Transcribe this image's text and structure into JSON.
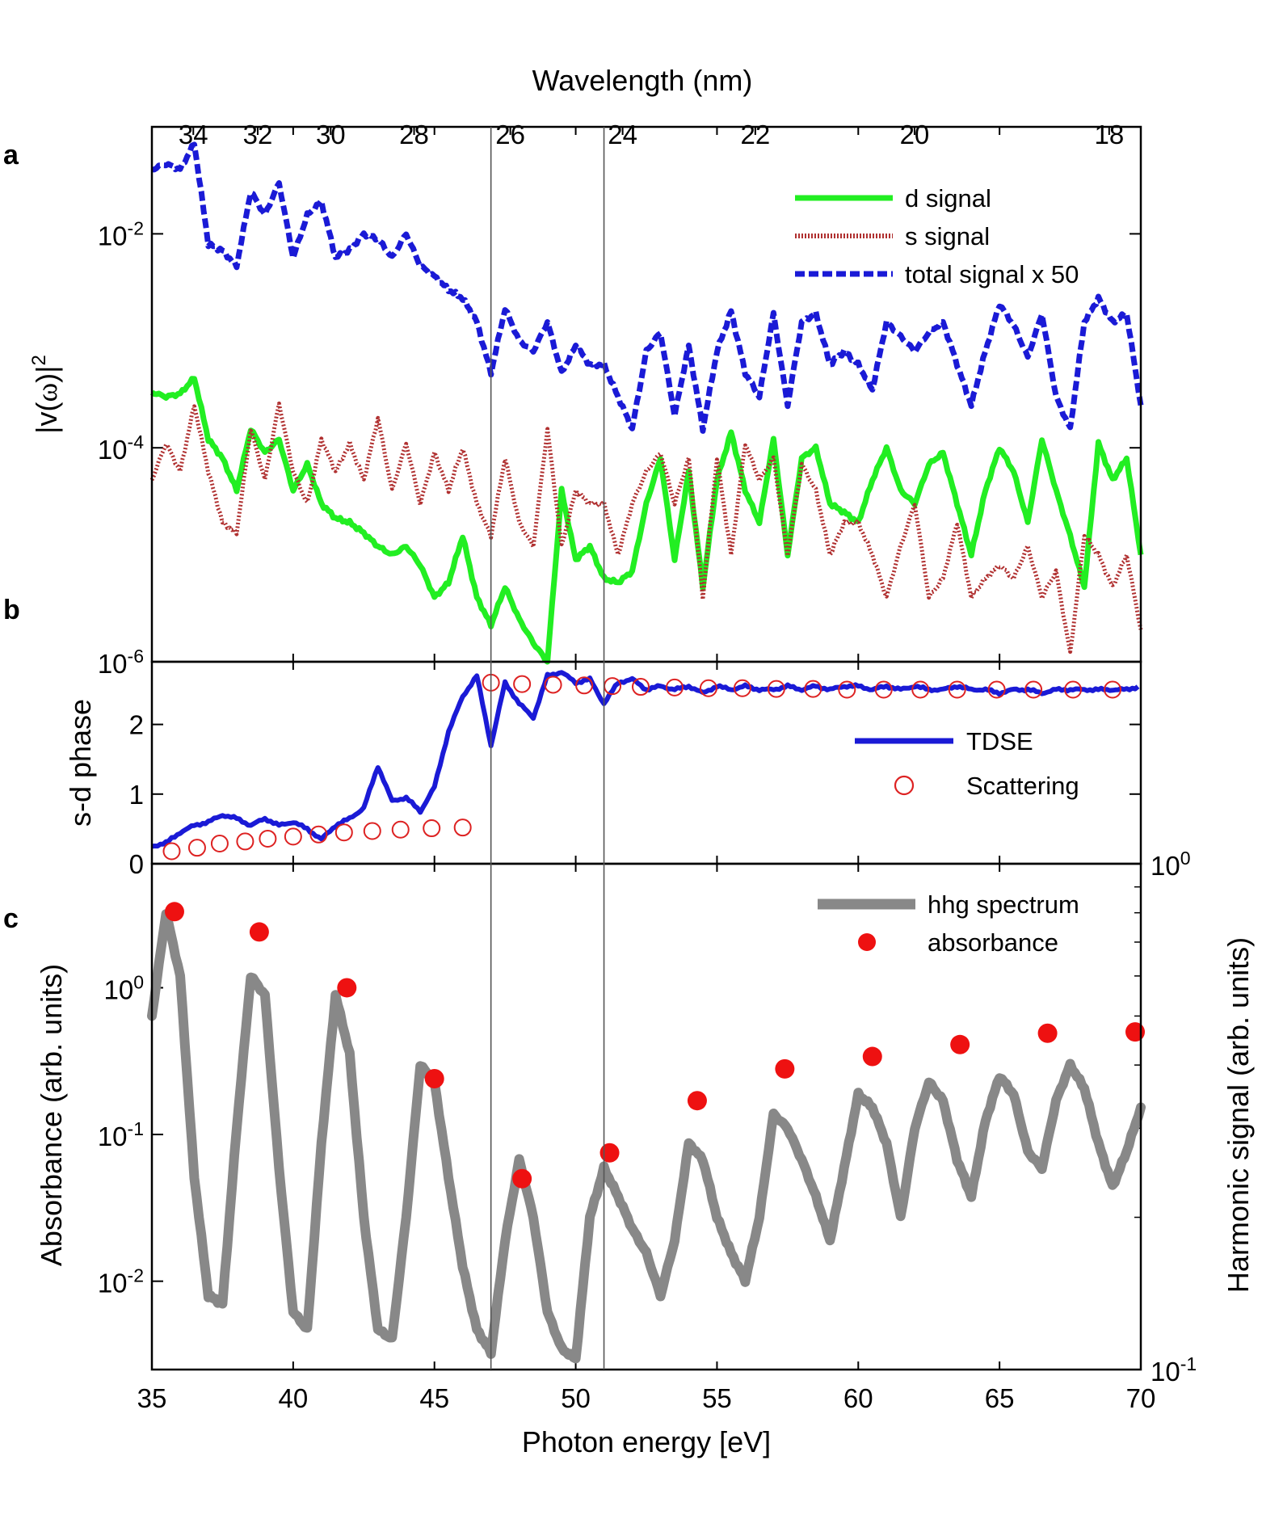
{
  "figure": {
    "panel_labels": [
      "a",
      "b",
      "c"
    ],
    "top_axis": {
      "label": "Wavelength (nm)",
      "ticks": [
        34,
        32,
        30,
        28,
        26,
        24,
        22,
        20,
        18
      ],
      "tick_labels": [
        "34",
        "32",
        "30",
        "28",
        "26",
        "24",
        "22",
        "20",
        "18"
      ]
    },
    "bottom_axis": {
      "label": "Photon energy [eV]",
      "range": [
        35,
        70
      ],
      "ticks": [
        35,
        40,
        45,
        50,
        55,
        60,
        65,
        70
      ],
      "tick_labels": [
        "35",
        "40",
        "45",
        "50",
        "55",
        "60",
        "65",
        "70"
      ]
    },
    "reference_lines_eV": [
      47.0,
      51.0
    ]
  },
  "chart_data": [
    {
      "panel": "a",
      "type": "line",
      "ylabel_base": "|v(",
      "ylabel_omega": "ω",
      "ylabel_end": ")|",
      "ylabel_sup": "2",
      "yscale": "log",
      "ylim": [
        1e-06,
        0.1
      ],
      "yticks": [
        1e-06,
        0.0001,
        0.01
      ],
      "ytick_bases": [
        "10",
        "10",
        "10"
      ],
      "ytick_exps": [
        "-6",
        "-4",
        "-2"
      ],
      "series": [
        {
          "name": "d signal",
          "color": "#22ee22",
          "style": "solid",
          "x": [
            35,
            35.5,
            36,
            36.5,
            37,
            37.5,
            38,
            38.5,
            39,
            39.5,
            40,
            40.5,
            41,
            41.5,
            42,
            42.5,
            43,
            43.5,
            44,
            44.5,
            45,
            45.5,
            46,
            46.5,
            47,
            47.5,
            48,
            48.5,
            49,
            49.5,
            50,
            50.5,
            51,
            51.5,
            52,
            52.5,
            53,
            53.5,
            54,
            54.5,
            55,
            55.5,
            56,
            56.5,
            57,
            57.5,
            58,
            58.5,
            59,
            59.5,
            60,
            60.5,
            61,
            61.5,
            62,
            62.5,
            63,
            63.5,
            64,
            64.5,
            65,
            65.5,
            66,
            66.5,
            67,
            67.5,
            68,
            68.5,
            69,
            69.5,
            70
          ],
          "y": [
            0.00033,
            0.0003,
            0.00032,
            0.00045,
            0.00012,
            8e-05,
            4e-05,
            0.00015,
            9e-05,
            0.00012,
            4e-05,
            7e-05,
            3e-05,
            2.2e-05,
            2e-05,
            1.6e-05,
            1.2e-05,
            1e-05,
            1.2e-05,
            8e-06,
            4e-06,
            5.5e-06,
            1.5e-05,
            4e-06,
            2.2e-06,
            5e-06,
            2.5e-06,
            1.5e-06,
            1e-06,
            4e-05,
            9e-06,
            1.2e-05,
            6e-06,
            5.5e-06,
            7e-06,
            3e-05,
            8e-05,
            9e-06,
            6e-05,
            5e-06,
            5e-05,
            0.00014,
            4e-05,
            2e-05,
            0.00012,
            1e-05,
            8e-05,
            0.0001,
            3e-05,
            2.5e-05,
            2e-05,
            5e-05,
            0.0001,
            4e-05,
            3e-05,
            7e-05,
            9e-05,
            3e-05,
            1e-05,
            4e-05,
            0.0001,
            6e-05,
            2e-05,
            0.00012,
            4e-05,
            1.5e-05,
            5e-06,
            0.00011,
            5e-05,
            8e-05,
            1e-05
          ]
        },
        {
          "name": "s signal",
          "color": "#b03030",
          "style": "dotted",
          "x": [
            35,
            35.5,
            36,
            36.5,
            37,
            37.5,
            38,
            38.5,
            39,
            39.5,
            40,
            40.5,
            41,
            41.5,
            42,
            42.5,
            43,
            43.5,
            44,
            44.5,
            45,
            45.5,
            46,
            46.5,
            47,
            47.5,
            48,
            48.5,
            49,
            49.5,
            50,
            50.5,
            51,
            51.5,
            52,
            52.5,
            53,
            53.5,
            54,
            54.5,
            55,
            55.5,
            56,
            56.5,
            57,
            57.5,
            58,
            58.5,
            59,
            59.5,
            60,
            60.5,
            61,
            61.5,
            62,
            62.5,
            63,
            63.5,
            64,
            64.5,
            65,
            65.5,
            66,
            66.5,
            67,
            67.5,
            68,
            68.5,
            69,
            69.5,
            70
          ],
          "y": [
            5e-05,
            0.00011,
            6e-05,
            0.00025,
            6e-05,
            2e-05,
            1.6e-05,
            0.00015,
            5e-05,
            0.00026,
            6e-05,
            3e-05,
            0.00012,
            6e-05,
            0.00011,
            5e-05,
            0.00019,
            4e-05,
            0.00011,
            3e-05,
            9e-05,
            4e-05,
            0.0001,
            3e-05,
            1.5e-05,
            8e-05,
            2e-05,
            1.2e-05,
            0.00015,
            1.2e-05,
            4e-05,
            3e-05,
            3e-05,
            1e-05,
            3e-05,
            6e-05,
            9e-05,
            3e-05,
            8e-05,
            4e-06,
            8e-05,
            1e-05,
            0.00011,
            5e-05,
            8e-05,
            1e-05,
            7e-05,
            4e-05,
            1e-05,
            2e-05,
            2e-05,
            1e-05,
            4e-06,
            1.2e-05,
            3e-05,
            4e-06,
            6e-06,
            2e-05,
            4e-06,
            6e-06,
            8e-06,
            6e-06,
            1.2e-05,
            4e-06,
            7e-06,
            1.2e-06,
            1.5e-05,
            1e-05,
            5e-06,
            1e-05,
            2e-06
          ]
        },
        {
          "name": "total signal x 50",
          "color": "#1a1ad6",
          "style": "dashed",
          "x": [
            35,
            35.5,
            36,
            36.5,
            37,
            37.5,
            38,
            38.5,
            39,
            39.5,
            40,
            40.5,
            41,
            41.5,
            42,
            42.5,
            43,
            43.5,
            44,
            44.5,
            45,
            45.5,
            46,
            46.5,
            47,
            47.5,
            48,
            48.5,
            49,
            49.5,
            50,
            50.5,
            51,
            51.5,
            52,
            52.5,
            53,
            53.5,
            54,
            54.5,
            55,
            55.5,
            56,
            56.5,
            57,
            57.5,
            58,
            58.5,
            59,
            59.5,
            60,
            60.5,
            61,
            61.5,
            62,
            62.5,
            63,
            63.5,
            64,
            64.5,
            65,
            65.5,
            66,
            66.5,
            67,
            67.5,
            68,
            68.5,
            69,
            69.5,
            70
          ],
          "y": [
            0.04,
            0.045,
            0.04,
            0.07,
            0.008,
            0.007,
            0.005,
            0.025,
            0.015,
            0.03,
            0.006,
            0.015,
            0.02,
            0.006,
            0.007,
            0.01,
            0.009,
            0.006,
            0.01,
            0.005,
            0.004,
            0.003,
            0.0025,
            0.0015,
            0.0005,
            0.002,
            0.001,
            0.0008,
            0.0015,
            0.0005,
            0.0009,
            0.0006,
            0.0006,
            0.0003,
            0.00015,
            0.0008,
            0.0012,
            0.0002,
            0.0009,
            0.00015,
            0.0008,
            0.0019,
            0.0005,
            0.0003,
            0.0018,
            0.00025,
            0.0015,
            0.0018,
            0.0006,
            0.0008,
            0.0006,
            0.00035,
            0.0015,
            0.0011,
            0.0008,
            0.0012,
            0.0015,
            0.0006,
            0.00025,
            0.0008,
            0.0022,
            0.0014,
            0.0007,
            0.0018,
            0.0003,
            0.00015,
            0.0015,
            0.0025,
            0.0015,
            0.0018,
            0.00025
          ]
        }
      ]
    },
    {
      "panel": "b",
      "type": "line",
      "ylabel": "s-d phase",
      "ylim": [
        0,
        2.9
      ],
      "yticks": [
        0,
        1,
        2
      ],
      "ytick_labels": [
        "0",
        "1",
        "2"
      ],
      "series": [
        {
          "name": "TDSE",
          "color": "#1a1ad6",
          "style": "solid",
          "x": [
            35,
            35.5,
            36,
            36.5,
            37,
            37.5,
            38,
            38.5,
            39,
            39.5,
            40,
            40.5,
            41,
            41.5,
            42,
            42.5,
            43,
            43.5,
            44,
            44.5,
            45,
            45.5,
            46,
            46.5,
            47,
            47.5,
            48,
            48.5,
            49,
            49.5,
            50,
            50.5,
            51,
            51.5,
            52,
            52.5,
            53,
            53.5,
            54,
            54.5,
            55,
            55.5,
            56,
            56.5,
            57,
            57.5,
            58,
            58.5,
            59,
            59.5,
            60,
            60.5,
            61,
            61.5,
            62,
            62.5,
            63,
            63.5,
            64,
            64.5,
            65,
            65.5,
            66,
            66.5,
            67,
            67.5,
            68,
            68.5,
            69,
            69.5,
            70
          ],
          "y": [
            0.25,
            0.3,
            0.45,
            0.55,
            0.6,
            0.7,
            0.65,
            0.55,
            0.65,
            0.55,
            0.6,
            0.5,
            0.35,
            0.55,
            0.65,
            0.8,
            1.4,
            0.9,
            0.95,
            0.75,
            1.1,
            1.9,
            2.4,
            2.7,
            1.7,
            2.6,
            2.3,
            2.1,
            2.7,
            2.75,
            2.6,
            2.65,
            2.3,
            2.6,
            2.65,
            2.5,
            2.55,
            2.5,
            2.55,
            2.45,
            2.55,
            2.5,
            2.55,
            2.5,
            2.5,
            2.55,
            2.5,
            2.55,
            2.5,
            2.55,
            2.55,
            2.5,
            2.55,
            2.5,
            2.55,
            2.5,
            2.5,
            2.55,
            2.5,
            2.5,
            2.45,
            2.5,
            2.5,
            2.45,
            2.5,
            2.5,
            2.5,
            2.5,
            2.5,
            2.5,
            2.55
          ]
        },
        {
          "name": "Scattering",
          "color": "#dd2222",
          "style": "open-circle",
          "x": [
            35.7,
            36.6,
            37.4,
            38.3,
            39.1,
            40.0,
            40.9,
            41.8,
            42.8,
            43.8,
            44.9,
            46.0,
            47.0,
            48.1,
            49.2,
            50.3,
            51.3,
            52.3,
            53.5,
            54.7,
            55.9,
            57.1,
            58.4,
            59.6,
            60.9,
            62.2,
            63.5,
            64.9,
            66.2,
            67.6,
            69.0
          ],
          "y": [
            0.18,
            0.23,
            0.29,
            0.32,
            0.36,
            0.39,
            0.42,
            0.45,
            0.47,
            0.49,
            0.51,
            0.52,
            2.6,
            2.58,
            2.57,
            2.56,
            2.55,
            2.54,
            2.53,
            2.52,
            2.52,
            2.51,
            2.51,
            2.5,
            2.5,
            2.5,
            2.5,
            2.5,
            2.5,
            2.5,
            2.5
          ]
        }
      ]
    },
    {
      "panel": "c",
      "type": "line",
      "ylabel_left": "Absorbance (arb. units)",
      "ylabel_right": "Harmonic signal (arb. units)",
      "yscale": "log",
      "ylim_left": [
        0.0025,
        7
      ],
      "yticks_left": [
        0.01,
        0.1,
        1
      ],
      "ytick_left_bases": [
        "10",
        "10",
        "10"
      ],
      "ytick_left_exps": [
        "-2",
        "-1",
        "0"
      ],
      "ylim_right": [
        0.1,
        1
      ],
      "yticks_right": [
        0.1,
        1
      ],
      "ytick_right_bases": [
        "10",
        "10"
      ],
      "ytick_right_exps": [
        "-1",
        "0"
      ],
      "series": [
        {
          "name": "hhg spectrum",
          "color": "#888888",
          "style": "solid",
          "axis": "right",
          "x": [
            35,
            35.5,
            36,
            36.5,
            37,
            37.5,
            38,
            38.5,
            39,
            39.5,
            40,
            40.5,
            41,
            41.5,
            42,
            42.5,
            43,
            43.5,
            44,
            44.5,
            45,
            45.5,
            46,
            46.5,
            47,
            47.5,
            48,
            48.5,
            49,
            49.5,
            50,
            50.5,
            51,
            51.5,
            52,
            52.5,
            53,
            53.5,
            54,
            54.5,
            55,
            55.5,
            56,
            56.5,
            57,
            57.5,
            58,
            58.5,
            59,
            59.5,
            60,
            60.5,
            61,
            61.5,
            62,
            62.5,
            63,
            63.5,
            64,
            64.5,
            65,
            65.5,
            66,
            66.5,
            67,
            67.5,
            68,
            68.5,
            69,
            69.5,
            70
          ],
          "y": [
            0.5,
            0.8,
            0.6,
            0.24,
            0.14,
            0.135,
            0.3,
            0.6,
            0.55,
            0.25,
            0.13,
            0.12,
            0.28,
            0.55,
            0.42,
            0.2,
            0.12,
            0.115,
            0.2,
            0.4,
            0.37,
            0.24,
            0.16,
            0.12,
            0.108,
            0.18,
            0.26,
            0.2,
            0.13,
            0.11,
            0.105,
            0.2,
            0.25,
            0.22,
            0.19,
            0.17,
            0.14,
            0.18,
            0.28,
            0.26,
            0.2,
            0.17,
            0.15,
            0.2,
            0.32,
            0.3,
            0.26,
            0.22,
            0.18,
            0.25,
            0.35,
            0.33,
            0.28,
            0.2,
            0.3,
            0.37,
            0.34,
            0.26,
            0.22,
            0.31,
            0.38,
            0.35,
            0.27,
            0.25,
            0.34,
            0.4,
            0.36,
            0.28,
            0.23,
            0.27,
            0.33
          ]
        },
        {
          "name": "absorbance",
          "color": "#ee1111",
          "style": "filled-circle",
          "axis": "left",
          "x": [
            35.8,
            38.8,
            41.9,
            45.0,
            48.1,
            51.2,
            54.3,
            57.4,
            60.5,
            63.6,
            66.7,
            69.8
          ],
          "y": [
            3.3,
            2.4,
            1.0,
            0.24,
            0.05,
            0.075,
            0.17,
            0.28,
            0.34,
            0.41,
            0.49,
            0.5
          ]
        }
      ]
    }
  ]
}
